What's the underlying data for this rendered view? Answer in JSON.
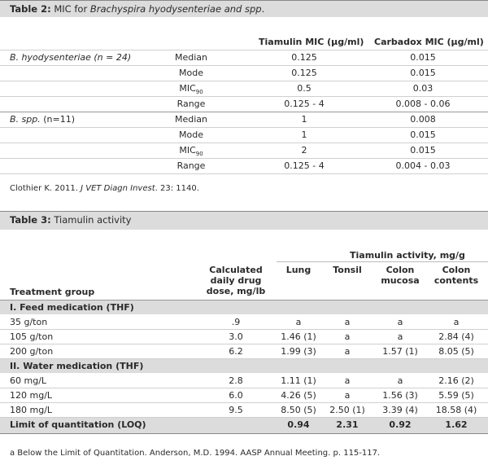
{
  "table2": {
    "title_prefix": "Table 2:",
    "title_text": "MIC for ",
    "title_italic": "Brachyspira hyodysenteriae and spp",
    "title_suffix": ".",
    "col_tiamulin": "Tiamulin MIC (µg/ml)",
    "col_carbadox": "Carbadox MIC (µg/ml)",
    "groups": [
      {
        "name": "B. hyodysenteriae (n = 24)",
        "rows": [
          {
            "stat": "Median",
            "tiamulin": "0.125",
            "carbadox": "0.015"
          },
          {
            "stat": "Mode",
            "tiamulin": "0.125",
            "carbadox": "0.015"
          },
          {
            "stat": "MIC",
            "stat_sub": "90",
            "tiamulin": "0.5",
            "carbadox": "0.03"
          },
          {
            "stat": "Range",
            "tiamulin": "0.125 - 4",
            "carbadox": "0.008 - 0.06"
          }
        ]
      },
      {
        "name": "B. spp.",
        "name_suffix": " (n=11)",
        "rows": [
          {
            "stat": "Median",
            "tiamulin": "1",
            "carbadox": "0.008"
          },
          {
            "stat": "Mode",
            "tiamulin": "1",
            "carbadox": "0.015"
          },
          {
            "stat": "MIC",
            "stat_sub": "90",
            "tiamulin": "2",
            "carbadox": "0.015"
          },
          {
            "stat": "Range",
            "tiamulin": "0.125 - 4",
            "carbadox": "0.004 - 0.03"
          }
        ]
      }
    ],
    "source_prefix": "Clothier K. 2011. ",
    "source_italic": "J VET Diagn Invest",
    "source_suffix": ". 23: 1140."
  },
  "table3": {
    "title_prefix": "Table 3:",
    "title_text": " Tiamulin activity",
    "super_header": "Tiamulin activity, mg/g",
    "col_treatment": "Treatment group",
    "col_dose_l1": "Calculated",
    "col_dose_l2": "daily drug",
    "col_dose_l3": "dose,  mg/lb",
    "col_lung": "Lung",
    "col_tonsil": "Tonsil",
    "col_mucosa_l1": "Colon",
    "col_mucosa_l2": "mucosa",
    "col_contents_l1": "Colon",
    "col_contents_l2": "contents",
    "section1": "I.  Feed medication (THF)",
    "feed_rows": [
      {
        "group": "35 g/ton",
        "dose": ".9",
        "lung": "a",
        "tonsil": "a",
        "mucosa": "a",
        "contents": "a"
      },
      {
        "group": "105 g/ton",
        "dose": "3.0",
        "lung": "1.46 (1)",
        "tonsil": "a",
        "mucosa": "a",
        "contents": "2.84 (4)"
      },
      {
        "group": "200 g/ton",
        "dose": "6.2",
        "lung": "1.99 (3)",
        "tonsil": "a",
        "mucosa": "1.57 (1)",
        "contents": "8.05 (5)"
      }
    ],
    "section2": "II.  Water medication (THF)",
    "water_rows": [
      {
        "group": "60 mg/L",
        "dose": "2.8",
        "lung": "1.11 (1)",
        "tonsil": "a",
        "mucosa": "a",
        "contents": "2.16 (2)"
      },
      {
        "group": "120 mg/L",
        "dose": "6.0",
        "lung": "4.26 (5)",
        "tonsil": "a",
        "mucosa": "1.56 (3)",
        "contents": "5.59 (5)"
      },
      {
        "group": "180 mg/L",
        "dose": "9.5",
        "lung": "8.50 (5)",
        "tonsil": "2.50 (1)",
        "mucosa": "3.39 (4)",
        "contents": "18.58 (4)"
      }
    ],
    "loq_label": "Limit of quantitation (LOQ)",
    "loq_lung": "0.94",
    "loq_tonsil": "2.31",
    "loq_mucosa": "0.92",
    "loq_contents": "1.62",
    "footnote": "a  Below the Limit of Quantitation. Anderson, M.D. 1994.  AASP Annual Meeting. p. 115-117."
  }
}
